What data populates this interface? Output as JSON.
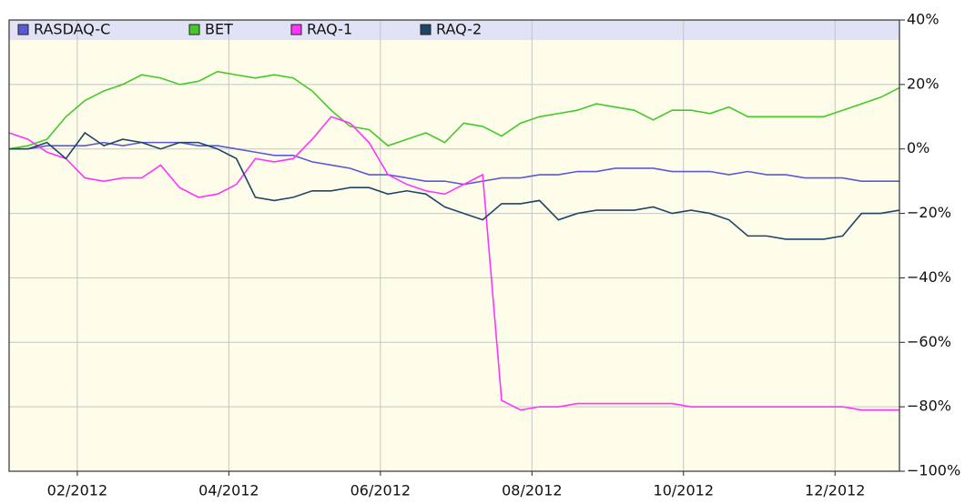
{
  "chart_data": {
    "type": "line",
    "x": [
      1.1,
      1.35,
      1.6,
      1.85,
      2.1,
      2.35,
      2.6,
      2.85,
      3.1,
      3.35,
      3.6,
      3.85,
      4.1,
      4.35,
      4.6,
      4.85,
      5.1,
      5.35,
      5.6,
      5.85,
      6.1,
      6.35,
      6.6,
      6.85,
      7.1,
      7.35,
      7.6,
      7.85,
      8.1,
      8.35,
      8.6,
      8.85,
      9.1,
      9.35,
      9.6,
      9.85,
      10.1,
      10.35,
      10.6,
      10.85,
      11.1,
      11.35,
      11.6,
      11.85,
      12.1,
      12.35,
      12.6,
      12.85
    ],
    "series": [
      {
        "name": "RASDAQ-C",
        "color": "#5a5ad8",
        "values": [
          0,
          0,
          1,
          1,
          1,
          2,
          1,
          2,
          2,
          2,
          1,
          1,
          0,
          -1,
          -2,
          -2,
          -4,
          -5,
          -6,
          -8,
          -8,
          -9,
          -10,
          -10,
          -11,
          -10,
          -9,
          -9,
          -8,
          -8,
          -7,
          -7,
          -6,
          -6,
          -6,
          -7,
          -7,
          -7,
          -8,
          -7,
          -8,
          -8,
          -9,
          -9,
          -9,
          -10,
          -10,
          -10
        ]
      },
      {
        "name": "BET",
        "color": "#44c82a",
        "values": [
          0,
          1,
          3,
          10,
          15,
          18,
          20,
          23,
          22,
          20,
          21,
          24,
          23,
          22,
          23,
          22,
          18,
          12,
          7,
          6,
          1,
          3,
          5,
          2,
          8,
          7,
          4,
          8,
          10,
          11,
          12,
          14,
          13,
          12,
          9,
          12,
          12,
          11,
          13,
          10,
          10,
          10,
          10,
          10,
          12,
          14,
          16,
          19
        ]
      },
      {
        "name": "RAQ-1",
        "color": "#ff33ff",
        "values": [
          5,
          3,
          -1,
          -3,
          -9,
          -10,
          -9,
          -9,
          -5,
          -12,
          -15,
          -14,
          -11,
          -3,
          -4,
          -3,
          3,
          10,
          8,
          2,
          -8,
          -11,
          -13,
          -14,
          -11,
          -8,
          -78,
          -81,
          -80,
          -80,
          -79,
          -79,
          -79,
          -79,
          -79,
          -79,
          -80,
          -80,
          -80,
          -80,
          -80,
          -80,
          -80,
          -80,
          -80,
          -81,
          -81,
          -81
        ]
      },
      {
        "name": "RAQ-2",
        "color": "#1f4566",
        "values": [
          0,
          0,
          2,
          -3,
          5,
          1,
          3,
          2,
          0,
          2,
          2,
          0,
          -3,
          -15,
          -16,
          -15,
          -13,
          -13,
          -12,
          -12,
          -14,
          -13,
          -14,
          -18,
          -20,
          -22,
          -17,
          -17,
          -16,
          -22,
          -20,
          -19,
          -19,
          -19,
          -18,
          -20,
          -19,
          -20,
          -22,
          -27,
          -27,
          -28,
          -28,
          -28,
          -27,
          -20,
          -20,
          -19
        ]
      }
    ],
    "xlim": [
      1.1,
      12.85
    ],
    "xticks": [
      {
        "value": 2,
        "label": "02/2012"
      },
      {
        "value": 4,
        "label": "04/2012"
      },
      {
        "value": 6,
        "label": "06/2012"
      },
      {
        "value": 8,
        "label": "08/2012"
      },
      {
        "value": 10,
        "label": "10/2012"
      },
      {
        "value": 12,
        "label": "12/2012"
      }
    ],
    "ylim": [
      -100,
      40
    ],
    "yticks": [
      {
        "value": -100,
        "label": "−100%"
      },
      {
        "value": -80,
        "label": "−80%"
      },
      {
        "value": -60,
        "label": "−60%"
      },
      {
        "value": -40,
        "label": "−40%"
      },
      {
        "value": -20,
        "label": "−20%"
      },
      {
        "value": 0,
        "label": "0%"
      },
      {
        "value": 20,
        "label": "20%"
      },
      {
        "value": 40,
        "label": "40%"
      }
    ],
    "grid": true,
    "legend": "top"
  }
}
